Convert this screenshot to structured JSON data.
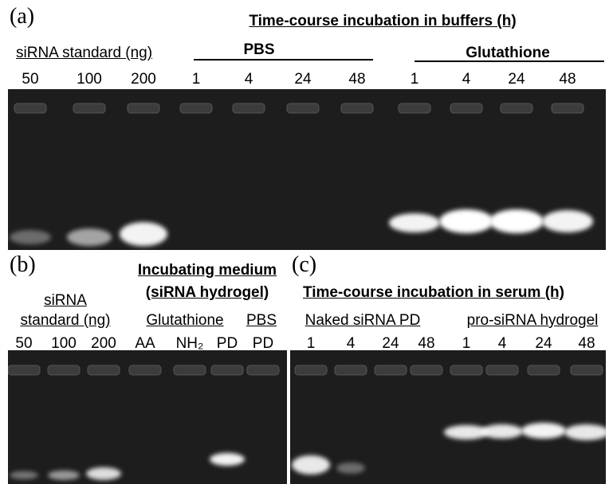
{
  "panel_a": {
    "label": "(a)",
    "title": "Time-course incubation in buffers (h)",
    "standard_label": "siRNA standard (ng)",
    "groups": [
      "PBS",
      "Glutathione"
    ],
    "lanes": [
      "50",
      "100",
      "200",
      "1",
      "4",
      "24",
      "48",
      "1",
      "4",
      "24",
      "48"
    ]
  },
  "panel_b": {
    "label": "(b)",
    "title": [
      "Incubating medium",
      "(siRNA hydrogel)"
    ],
    "standard_label": [
      "siRNA",
      "standard (ng)"
    ],
    "groups": [
      "Glutathione",
      "PBS"
    ],
    "lanes": [
      "50",
      "100",
      "200",
      "AA",
      "NH₂",
      "PD",
      "PD"
    ]
  },
  "panel_c": {
    "label": "(c)",
    "title": "Time-course incubation in serum (h)",
    "groups": [
      "Naked siRNA PD",
      "pro-siRNA hydrogel"
    ],
    "lanes": [
      "1",
      "4",
      "24",
      "48",
      "1",
      "4",
      "24",
      "48"
    ]
  }
}
